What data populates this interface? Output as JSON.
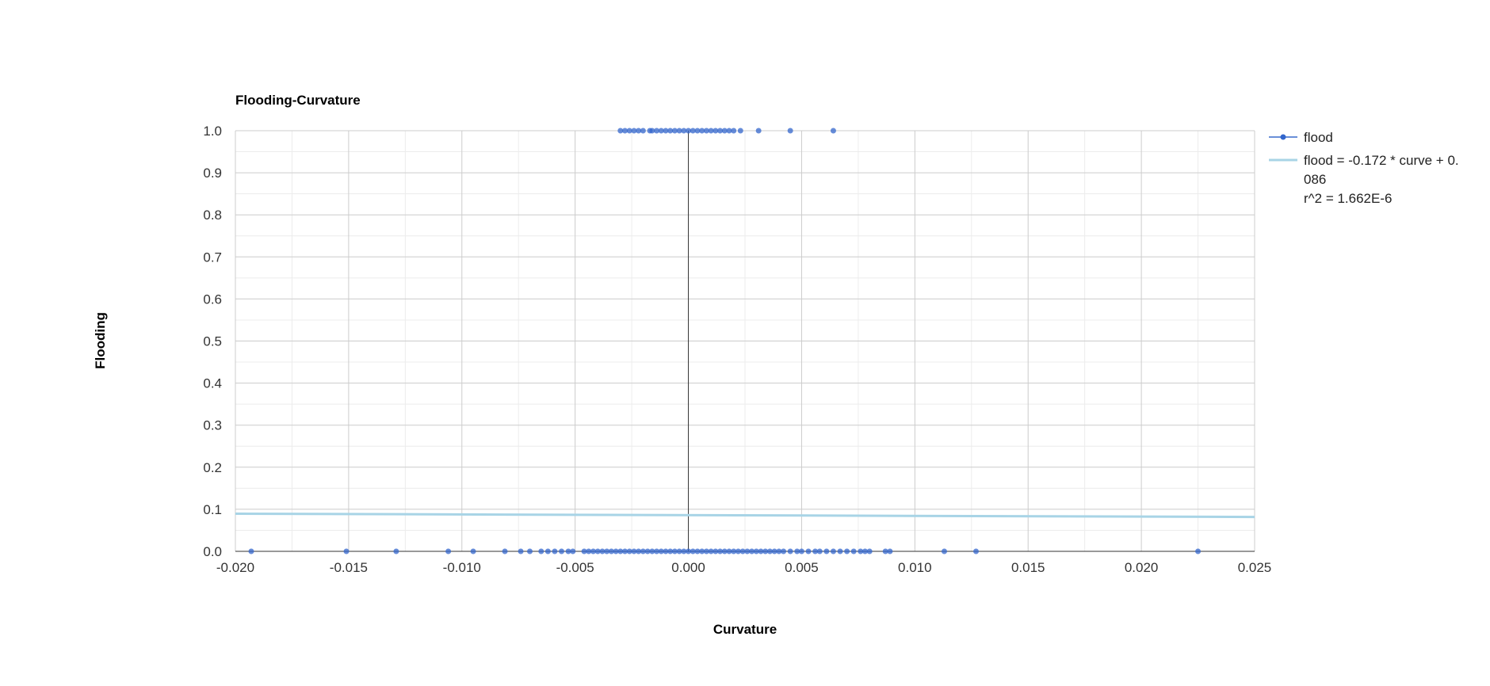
{
  "chart_data": {
    "type": "scatter",
    "title": "Flooding-Curvature",
    "xlabel": "Curvature",
    "ylabel": "Flooding",
    "xlim": [
      -0.02,
      0.025
    ],
    "ylim": [
      0.0,
      1.0
    ],
    "x_ticks": [
      -0.02,
      -0.015,
      -0.01,
      -0.005,
      0.0,
      0.005,
      0.01,
      0.015,
      0.02,
      0.025
    ],
    "x_tick_labels": [
      "-0.020",
      "-0.015",
      "-0.010",
      "-0.005",
      "0.000",
      "0.005",
      "0.010",
      "0.015",
      "0.020",
      "0.025"
    ],
    "y_ticks": [
      0.0,
      0.1,
      0.2,
      0.3,
      0.4,
      0.5,
      0.6,
      0.7,
      0.8,
      0.9,
      1.0
    ],
    "y_tick_labels": [
      "0.0",
      "0.1",
      "0.2",
      "0.3",
      "0.4",
      "0.5",
      "0.6",
      "0.7",
      "0.8",
      "0.9",
      "1.0"
    ],
    "grid": true,
    "legend_position": "right",
    "series": [
      {
        "name": "flood",
        "kind": "points",
        "color": "#3366cc",
        "points": [
          [
            -0.0193,
            0
          ],
          [
            -0.0151,
            0
          ],
          [
            -0.0129,
            0
          ],
          [
            -0.0106,
            0
          ],
          [
            -0.0095,
            0
          ],
          [
            -0.0081,
            0
          ],
          [
            -0.0074,
            0
          ],
          [
            -0.007,
            0
          ],
          [
            -0.0065,
            0
          ],
          [
            -0.0062,
            0
          ],
          [
            -0.0059,
            0
          ],
          [
            -0.0056,
            0
          ],
          [
            -0.0053,
            0
          ],
          [
            -0.0051,
            0
          ],
          [
            -0.0046,
            0
          ],
          [
            -0.0044,
            0
          ],
          [
            -0.0042,
            0
          ],
          [
            -0.004,
            0
          ],
          [
            -0.0038,
            0
          ],
          [
            -0.0036,
            0
          ],
          [
            -0.0034,
            0
          ],
          [
            -0.0032,
            0
          ],
          [
            -0.003,
            0
          ],
          [
            -0.0028,
            0
          ],
          [
            -0.0026,
            0
          ],
          [
            -0.0024,
            0
          ],
          [
            -0.0022,
            0
          ],
          [
            -0.002,
            0
          ],
          [
            -0.0018,
            0
          ],
          [
            -0.0016,
            0
          ],
          [
            -0.0014,
            0
          ],
          [
            -0.0012,
            0
          ],
          [
            -0.001,
            0
          ],
          [
            -0.0008,
            0
          ],
          [
            -0.0006,
            0
          ],
          [
            -0.0004,
            0
          ],
          [
            -0.0002,
            0
          ],
          [
            0.0,
            0
          ],
          [
            0.0002,
            0
          ],
          [
            0.0004,
            0
          ],
          [
            0.0006,
            0
          ],
          [
            0.0008,
            0
          ],
          [
            0.001,
            0
          ],
          [
            0.0012,
            0
          ],
          [
            0.0014,
            0
          ],
          [
            0.0016,
            0
          ],
          [
            0.0018,
            0
          ],
          [
            0.002,
            0
          ],
          [
            0.0022,
            0
          ],
          [
            0.0024,
            0
          ],
          [
            0.0026,
            0
          ],
          [
            0.0028,
            0
          ],
          [
            0.003,
            0
          ],
          [
            0.0032,
            0
          ],
          [
            0.0034,
            0
          ],
          [
            0.0036,
            0
          ],
          [
            0.0038,
            0
          ],
          [
            0.004,
            0
          ],
          [
            0.0042,
            0
          ],
          [
            0.0045,
            0
          ],
          [
            0.0048,
            0
          ],
          [
            0.005,
            0
          ],
          [
            0.0053,
            0
          ],
          [
            0.0056,
            0
          ],
          [
            0.0058,
            0
          ],
          [
            0.0061,
            0
          ],
          [
            0.0064,
            0
          ],
          [
            0.0067,
            0
          ],
          [
            0.007,
            0
          ],
          [
            0.0073,
            0
          ],
          [
            0.0076,
            0
          ],
          [
            0.0078,
            0
          ],
          [
            0.008,
            0
          ],
          [
            0.0087,
            0
          ],
          [
            0.0089,
            0
          ],
          [
            0.0113,
            0
          ],
          [
            0.0127,
            0
          ],
          [
            0.0225,
            0
          ],
          [
            -0.003,
            1
          ],
          [
            -0.0028,
            1
          ],
          [
            -0.0026,
            1
          ],
          [
            -0.0024,
            1
          ],
          [
            -0.0022,
            1
          ],
          [
            -0.002,
            1
          ],
          [
            -0.0017,
            1
          ],
          [
            -0.0016,
            1
          ],
          [
            -0.0014,
            1
          ],
          [
            -0.0012,
            1
          ],
          [
            -0.001,
            1
          ],
          [
            -0.0008,
            1
          ],
          [
            -0.0006,
            1
          ],
          [
            -0.0004,
            1
          ],
          [
            -0.0002,
            1
          ],
          [
            0.0,
            1
          ],
          [
            0.0002,
            1
          ],
          [
            0.0004,
            1
          ],
          [
            0.0006,
            1
          ],
          [
            0.0008,
            1
          ],
          [
            0.001,
            1
          ],
          [
            0.0012,
            1
          ],
          [
            0.0014,
            1
          ],
          [
            0.0016,
            1
          ],
          [
            0.0018,
            1
          ],
          [
            0.002,
            1
          ],
          [
            0.0023,
            1
          ],
          [
            0.0031,
            1
          ],
          [
            0.0045,
            1
          ],
          [
            0.0064,
            1
          ]
        ]
      },
      {
        "name": "flood = -0.172 * curve + 0.086",
        "name_lines": [
          "flood = -0.172 * curve + 0.",
          "086",
          "r^2 = 1.662E-6"
        ],
        "kind": "trendline",
        "color": "#a8d4e6",
        "slope": -0.172,
        "intercept": 0.086,
        "r2": "1.662E-6"
      }
    ]
  }
}
